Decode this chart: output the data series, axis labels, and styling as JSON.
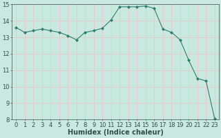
{
  "x": [
    0,
    1,
    2,
    3,
    4,
    5,
    6,
    7,
    8,
    9,
    10,
    11,
    12,
    13,
    14,
    15,
    16,
    17,
    18,
    19,
    20,
    21,
    22,
    23
  ],
  "y": [
    13.6,
    13.3,
    13.4,
    13.5,
    13.4,
    13.3,
    13.1,
    12.85,
    13.3,
    13.4,
    13.55,
    14.05,
    14.85,
    14.85,
    14.85,
    14.9,
    14.75,
    13.5,
    13.3,
    12.85,
    11.6,
    10.5,
    10.35,
    8.05
  ],
  "line_color": "#2e7d6e",
  "marker": "D",
  "marker_size": 2,
  "bg_color": "#c8e8e0",
  "grid_color": "#e8c8c8",
  "xlabel": "Humidex (Indice chaleur)",
  "xlim": [
    -0.5,
    23.5
  ],
  "ylim": [
    8,
    15
  ],
  "yticks": [
    8,
    9,
    10,
    11,
    12,
    13,
    14,
    15
  ],
  "xticks": [
    0,
    1,
    2,
    3,
    4,
    5,
    6,
    7,
    8,
    9,
    10,
    11,
    12,
    13,
    14,
    15,
    16,
    17,
    18,
    19,
    20,
    21,
    22,
    23
  ],
  "tick_fontsize": 6,
  "xlabel_fontsize": 7,
  "label_color": "#2e5048"
}
